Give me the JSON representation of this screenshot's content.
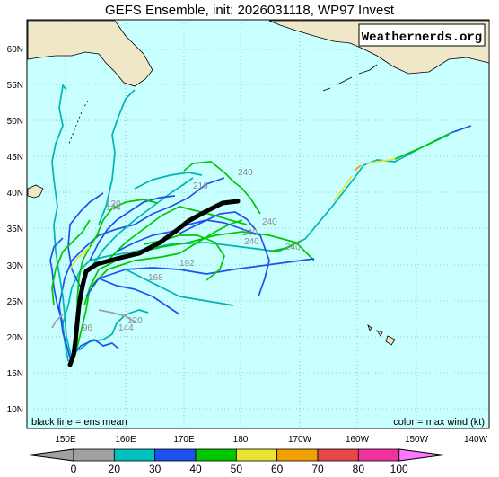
{
  "title": "GEFS Ensemble, init: 2026031118, WP97 Invest",
  "watermark": "Weathernerds.org",
  "note_left": "black line = ens mean",
  "note_right": "color = max wind (kt)",
  "lat_labels": [
    "60N",
    "55N",
    "50N",
    "45N",
    "40N",
    "35N",
    "30N",
    "25N",
    "20N",
    "15N",
    "10N"
  ],
  "lon_labels": [
    "150E",
    "160E",
    "170E",
    "180",
    "170W",
    "160W",
    "150W",
    "140W"
  ],
  "colorbar": {
    "ticks": [
      "0",
      "20",
      "30",
      "40",
      "50",
      "60",
      "70",
      "80",
      "100"
    ],
    "colors": [
      "#a0a0a0",
      "#00c0c0",
      "#2050f0",
      "#00c800",
      "#e6e632",
      "#f0a000",
      "#e64646",
      "#f032a0",
      "#ff78ff"
    ]
  },
  "hour_labels": [
    "240",
    "216",
    "240",
    "240",
    "240",
    "240",
    "192",
    "168",
    "144",
    "120",
    "144",
    "120",
    "96"
  ],
  "colors": {
    "ocean": "#c8ffff",
    "land": "#f0e6c8",
    "border": "#000000",
    "mean_track": "#000000"
  }
}
